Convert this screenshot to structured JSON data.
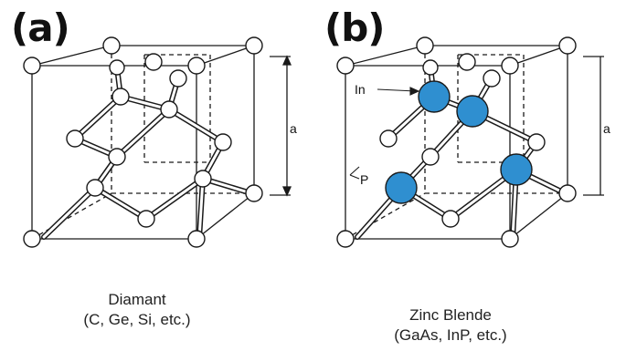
{
  "figure": {
    "panel_a": {
      "label": "(a)",
      "caption_line1": "Diamant",
      "caption_line2": "(C, Ge, Si, etc.)",
      "dimension_label": "a"
    },
    "panel_b": {
      "label": "(b)",
      "caption_line1": "Zinc Blende",
      "caption_line2": "(GaAs, InP, etc.)",
      "label_in": "In",
      "label_p": "P",
      "dimension_label": "a"
    }
  },
  "colors": {
    "line": "#1a1a1a",
    "atom_fill": "#ffffff",
    "atom_highlight": "#2f8fd0"
  }
}
